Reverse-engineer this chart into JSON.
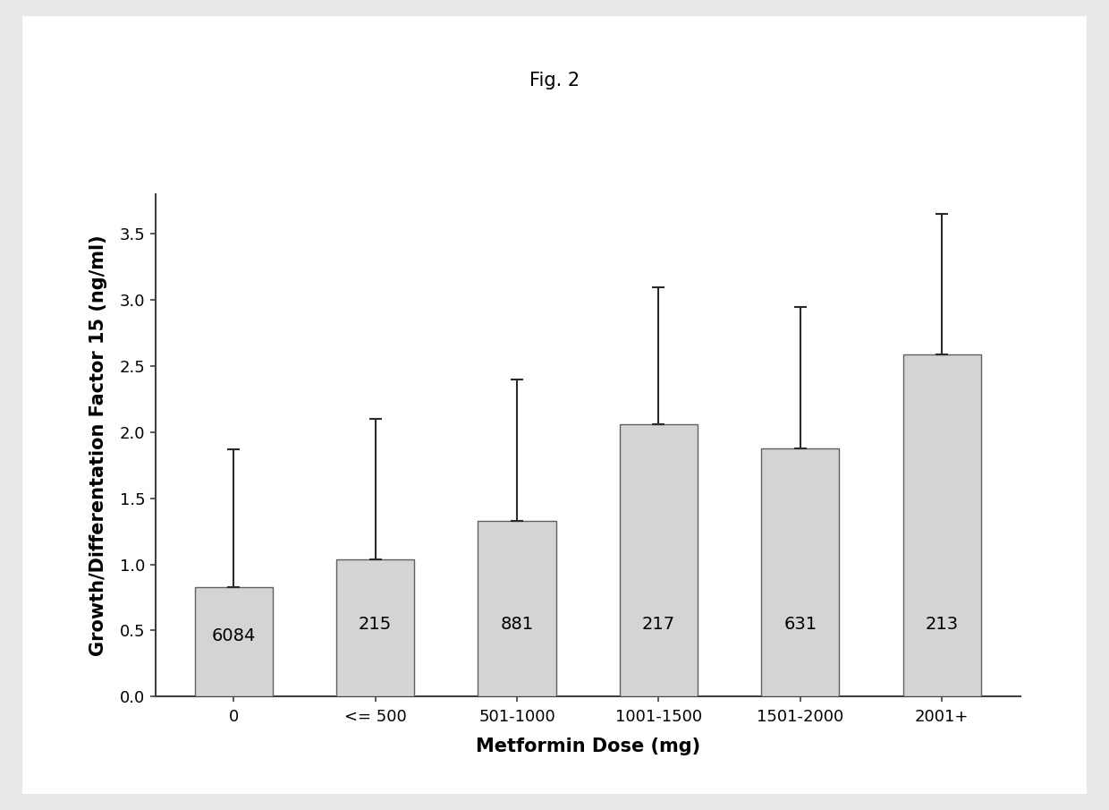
{
  "title": "Fig. 2",
  "categories": [
    "0",
    "<= 500",
    "501-1000",
    "1001-1500",
    "1501-2000",
    "2001+"
  ],
  "values": [
    0.83,
    1.04,
    1.33,
    2.06,
    1.88,
    2.59
  ],
  "errors_upper": [
    1.87,
    2.1,
    2.4,
    3.1,
    2.95,
    3.65
  ],
  "sample_sizes": [
    "6084",
    "215",
    "881",
    "217",
    "631",
    "213"
  ],
  "xlabel": "Metformin Dose (mg)",
  "ylabel": "Growth/Differentation Factor 15 (ng/ml)",
  "ylim": [
    0.0,
    3.8
  ],
  "yticks": [
    0.0,
    0.5,
    1.0,
    1.5,
    2.0,
    2.5,
    3.0,
    3.5
  ],
  "bar_color": "#d4d4d4",
  "bar_edge_color": "#606060",
  "error_color": "#2a2a2a",
  "title_fontsize": 15,
  "axis_label_fontsize": 15,
  "tick_fontsize": 13,
  "bar_label_fontsize": 14,
  "figure_background": "#ffffff",
  "plot_background": "#ffffff",
  "outer_background": "#e8e8e8"
}
